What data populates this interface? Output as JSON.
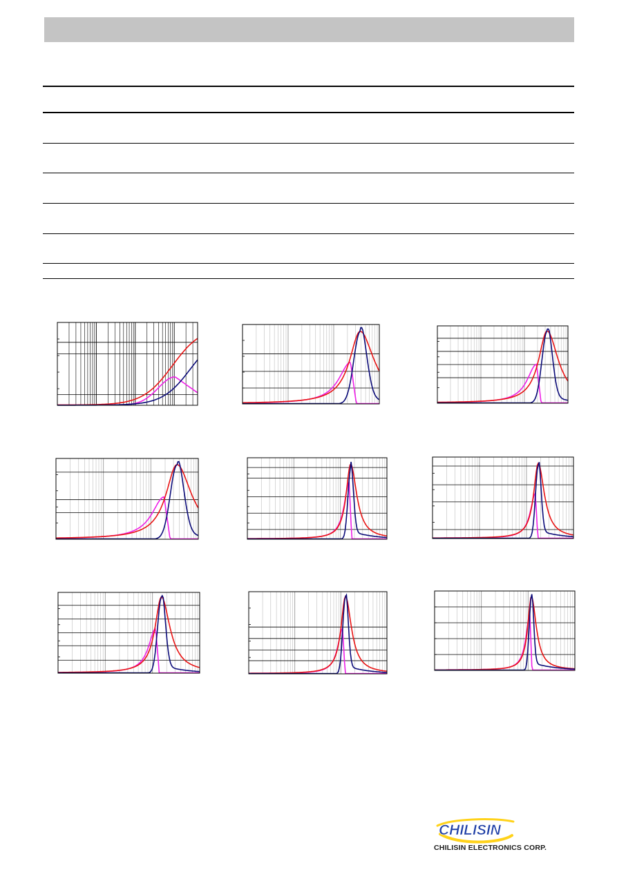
{
  "colors": {
    "header_bar": "#c4c4c4",
    "series_a": "#e81212",
    "series_b": "#0a0a78",
    "series_c": "#ee1ee6",
    "logo_blue": "#1f3fa6",
    "logo_yellow": "#ffd21a"
  },
  "charts": [
    {
      "type": "line",
      "x_scale": "log",
      "x_decades": 3,
      "curves": "low-frequency rise"
    },
    {
      "type": "line",
      "x_scale": "log",
      "curves": "resonance"
    },
    {
      "type": "line",
      "x_scale": "log",
      "curves": "resonance"
    },
    {
      "type": "line",
      "x_scale": "log",
      "curves": "resonance"
    },
    {
      "type": "line",
      "x_scale": "log",
      "curves": "resonance"
    },
    {
      "type": "line",
      "x_scale": "log",
      "curves": "resonance"
    },
    {
      "type": "line",
      "x_scale": "log",
      "curves": "resonance"
    },
    {
      "type": "line",
      "x_scale": "log",
      "curves": "resonance"
    },
    {
      "type": "line",
      "x_scale": "log",
      "curves": "resonance"
    }
  ],
  "footer": {
    "logo_icon": "chilisin-logo",
    "logo_wordmark": "CHILISIN",
    "company_name": "CHILISIN ELECTRONICS CORP."
  }
}
